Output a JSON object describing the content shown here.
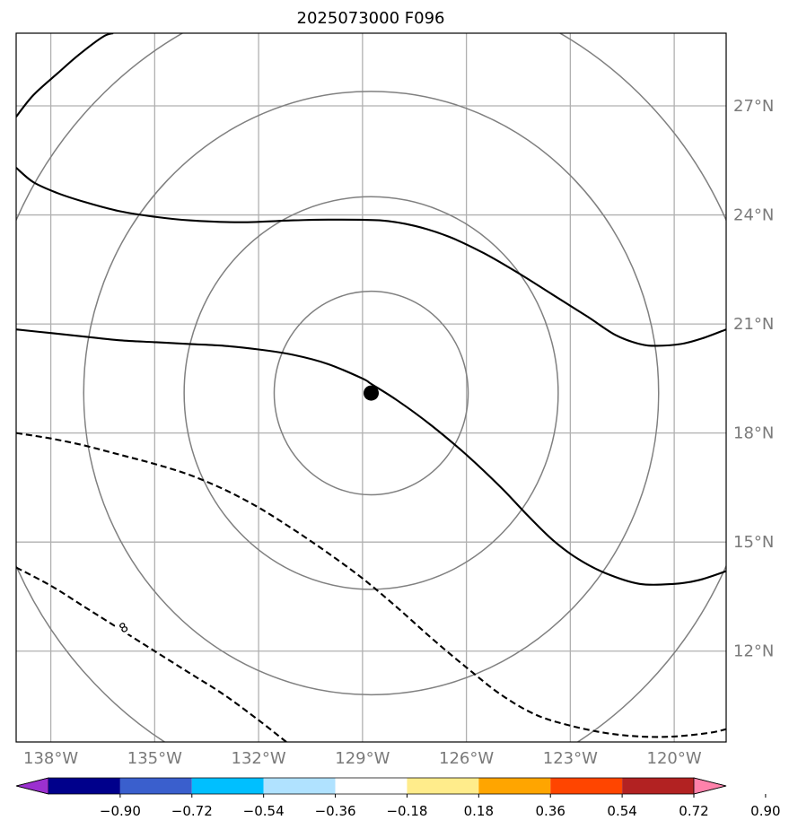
{
  "chart_data": {
    "type": "map",
    "title": "2025073000 F096",
    "projection": "lon-lat",
    "xlim": [
      -139,
      -118.5
    ],
    "ylim": [
      9.5,
      29
    ],
    "grid": true,
    "x_ticks": [
      {
        "value": -138,
        "label": "138°W"
      },
      {
        "value": -135,
        "label": "135°W"
      },
      {
        "value": -132,
        "label": "132°W"
      },
      {
        "value": -129,
        "label": "129°W"
      },
      {
        "value": -126,
        "label": "126°W"
      },
      {
        "value": -123,
        "label": "123°W"
      },
      {
        "value": -120,
        "label": "120°W"
      }
    ],
    "y_ticks": [
      {
        "value": 27,
        "label": "27°N"
      },
      {
        "value": 24,
        "label": "24°N"
      },
      {
        "value": 21,
        "label": "21°N"
      },
      {
        "value": 18,
        "label": "18°N"
      },
      {
        "value": 15,
        "label": "15°N"
      },
      {
        "value": 12,
        "label": "12°N"
      }
    ],
    "center": {
      "lon": -128.75,
      "lat": 19.1
    },
    "range_rings_deg": [
      2.8,
      5.4,
      8.3,
      11.3
    ],
    "contours": [
      {
        "style": "solid",
        "points": [
          [
            -139,
            26.7
          ],
          [
            -138.5,
            27.3
          ],
          [
            -137.8,
            27.9
          ],
          [
            -137.2,
            28.4
          ],
          [
            -136.5,
            28.9
          ],
          [
            -136.2,
            29.0
          ]
        ]
      },
      {
        "style": "solid",
        "points": [
          [
            -139,
            25.3
          ],
          [
            -138.5,
            24.9
          ],
          [
            -137.8,
            24.6
          ],
          [
            -137,
            24.35
          ],
          [
            -136,
            24.1
          ],
          [
            -135,
            23.95
          ],
          [
            -134,
            23.85
          ],
          [
            -132.5,
            23.8
          ],
          [
            -131,
            23.85
          ],
          [
            -130,
            23.87
          ],
          [
            -128.5,
            23.85
          ],
          [
            -127.5,
            23.7
          ],
          [
            -126.5,
            23.4
          ],
          [
            -125.5,
            22.95
          ],
          [
            -124.5,
            22.4
          ],
          [
            -123.5,
            21.8
          ],
          [
            -122.5,
            21.2
          ],
          [
            -121.7,
            20.7
          ],
          [
            -121,
            20.45
          ],
          [
            -120.5,
            20.4
          ],
          [
            -119.8,
            20.45
          ],
          [
            -119.2,
            20.6
          ],
          [
            -118.5,
            20.85
          ]
        ]
      },
      {
        "style": "solid",
        "points": [
          [
            -139,
            20.85
          ],
          [
            -138,
            20.75
          ],
          [
            -137,
            20.65
          ],
          [
            -136,
            20.55
          ],
          [
            -135,
            20.5
          ],
          [
            -134,
            20.45
          ],
          [
            -133,
            20.4
          ],
          [
            -132,
            20.3
          ],
          [
            -131,
            20.15
          ],
          [
            -130,
            19.9
          ],
          [
            -129,
            19.5
          ],
          [
            -128.75,
            19.35
          ],
          [
            -128,
            18.9
          ],
          [
            -127,
            18.2
          ],
          [
            -126,
            17.4
          ],
          [
            -125,
            16.5
          ],
          [
            -124.2,
            15.7
          ],
          [
            -123.5,
            15.05
          ],
          [
            -122.8,
            14.55
          ],
          [
            -122,
            14.15
          ],
          [
            -121,
            13.85
          ],
          [
            -120,
            13.85
          ],
          [
            -119.3,
            13.95
          ],
          [
            -118.5,
            14.2
          ]
        ]
      },
      {
        "style": "dashed",
        "points": [
          [
            -139,
            18.0
          ],
          [
            -138,
            17.85
          ],
          [
            -137,
            17.65
          ],
          [
            -136,
            17.4
          ],
          [
            -135,
            17.15
          ],
          [
            -134,
            16.85
          ],
          [
            -133,
            16.45
          ],
          [
            -132,
            15.95
          ],
          [
            -131,
            15.35
          ],
          [
            -130,
            14.7
          ],
          [
            -129,
            14.0
          ],
          [
            -128,
            13.2
          ],
          [
            -127,
            12.35
          ],
          [
            -126,
            11.55
          ],
          [
            -125,
            10.8
          ],
          [
            -124,
            10.25
          ],
          [
            -123,
            9.95
          ],
          [
            -122,
            9.75
          ],
          [
            -121,
            9.65
          ],
          [
            -120,
            9.65
          ],
          [
            -119,
            9.75
          ],
          [
            -118.5,
            9.85
          ]
        ]
      },
      {
        "style": "dashed",
        "points": [
          [
            -139,
            14.3
          ],
          [
            -138,
            13.8
          ],
          [
            -137,
            13.2
          ],
          [
            -136,
            12.6
          ],
          [
            -135,
            12.0
          ],
          [
            -134,
            11.4
          ],
          [
            -133,
            10.8
          ],
          [
            -132,
            10.1
          ],
          [
            -131.2,
            9.5
          ]
        ]
      }
    ],
    "contour_labels": [
      {
        "text": "8",
        "lon": -135.9,
        "lat": 12.65,
        "rotation": -30
      }
    ],
    "colorbar": {
      "ticks": [
        "−0.90",
        "−0.72",
        "−0.54",
        "−0.36",
        "−0.18",
        "0.18",
        "0.36",
        "0.54",
        "0.72",
        "0.90"
      ],
      "colors": [
        "#9b30d0",
        "#00008b",
        "#3a5fcd",
        "#00bfff",
        "#b0e2ff",
        "#ffffff",
        "#ffec8b",
        "#ffa500",
        "#ff4500",
        "#b22222",
        "#ff82ab"
      ]
    }
  }
}
